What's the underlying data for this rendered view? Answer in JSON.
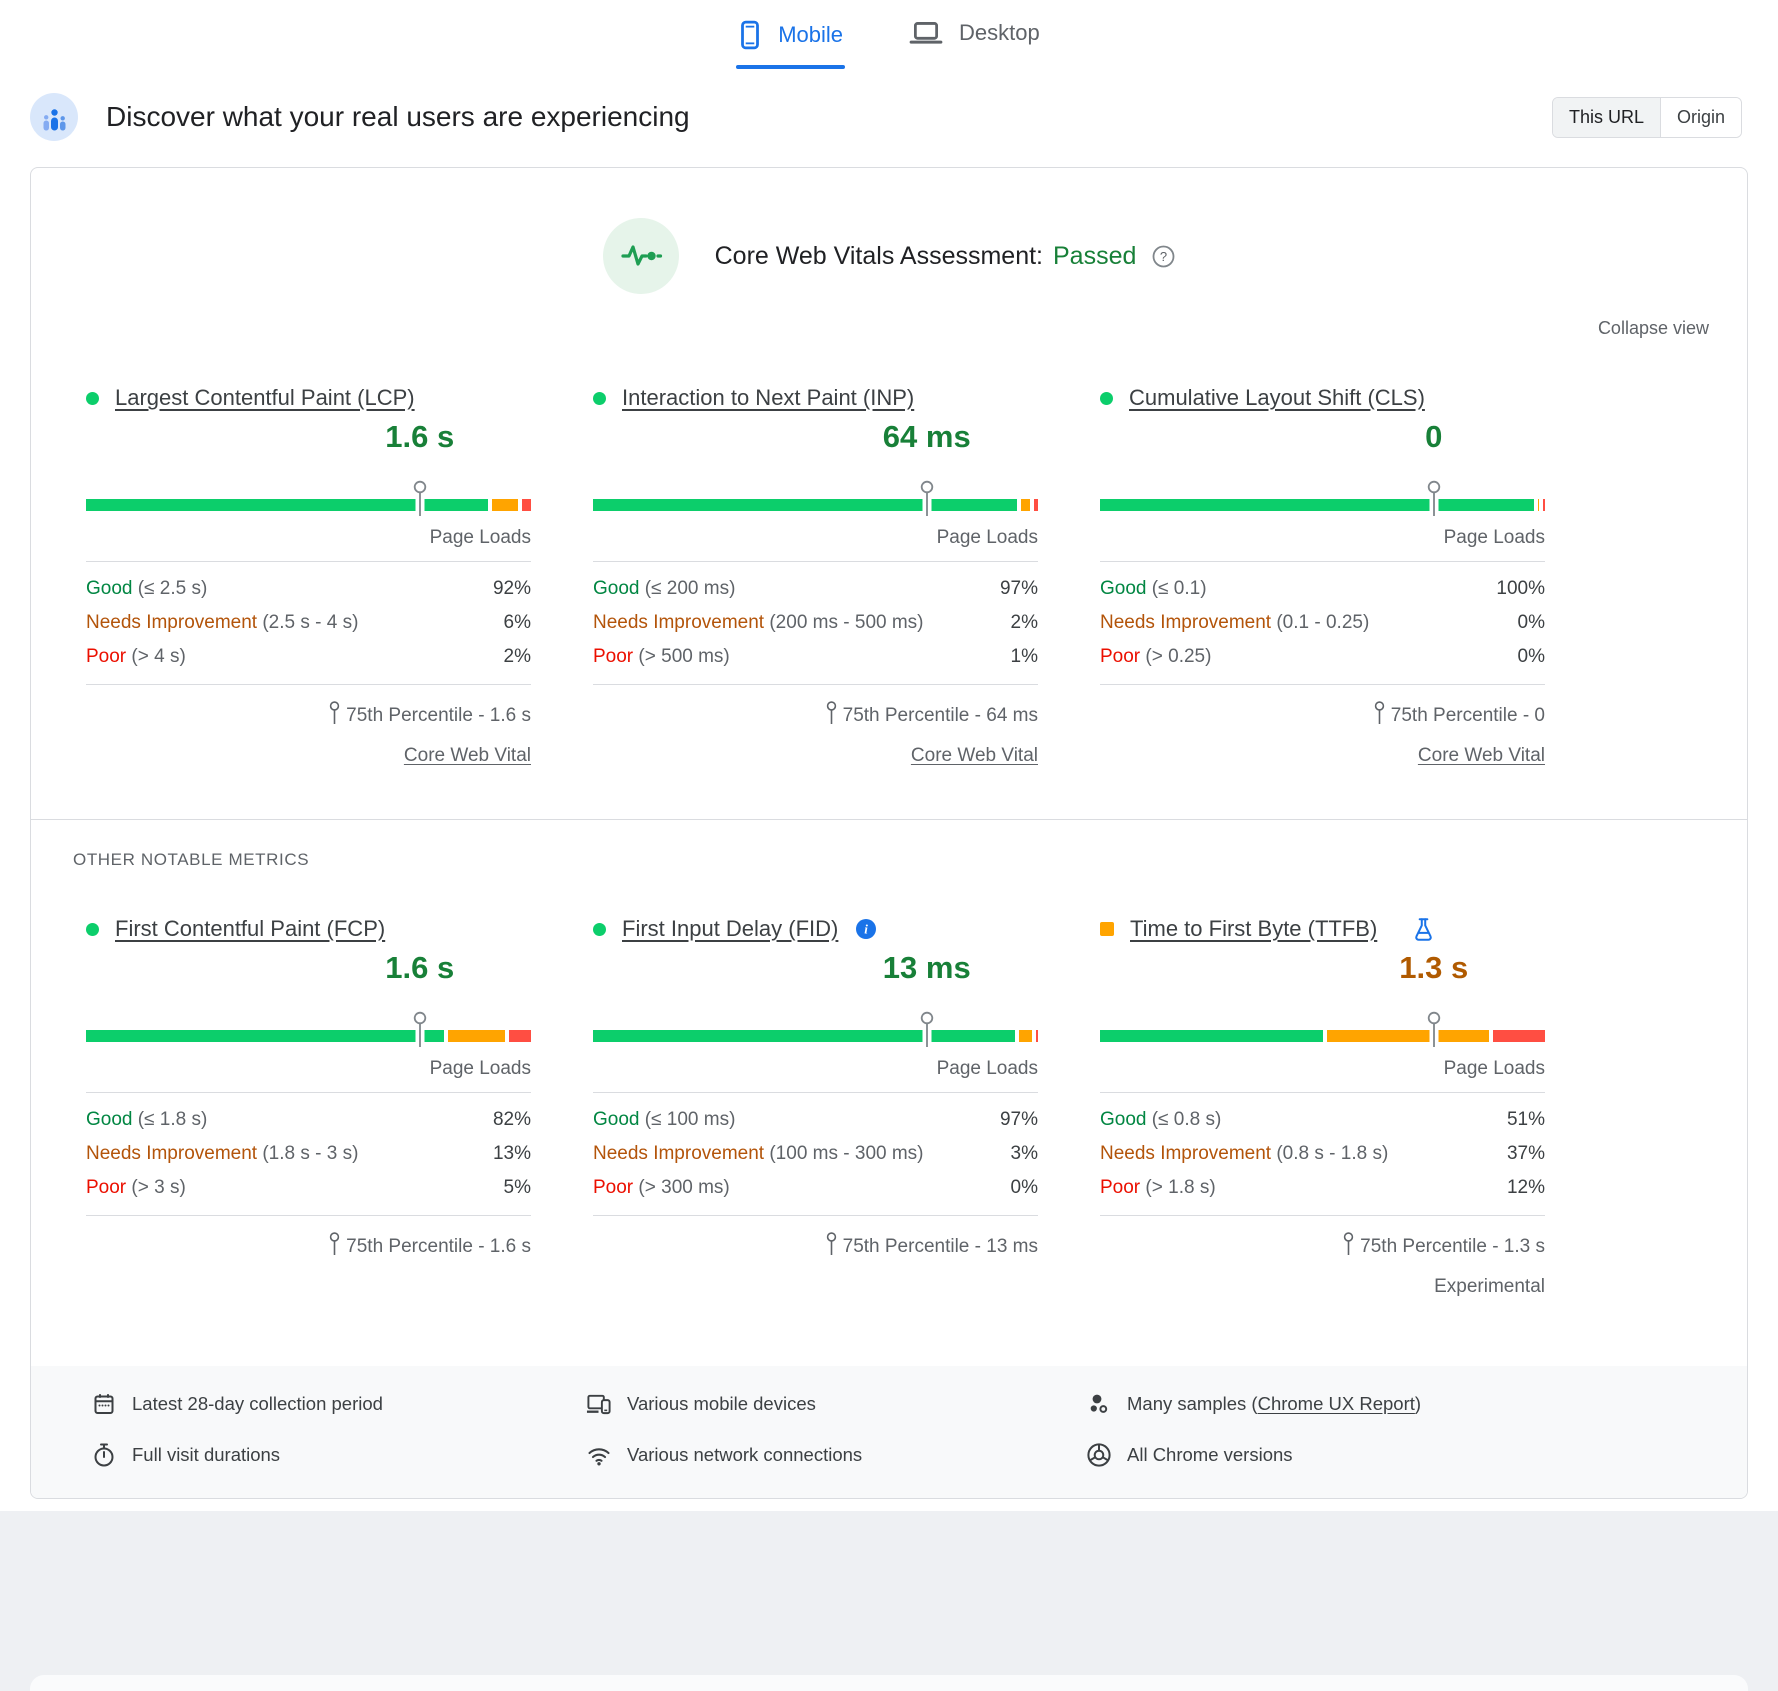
{
  "tabs": {
    "items": [
      {
        "label": "Mobile",
        "icon": "mobile-icon",
        "active": true
      },
      {
        "label": "Desktop",
        "icon": "desktop-icon",
        "active": false
      }
    ]
  },
  "header": {
    "title": "Discover what your real users are experiencing",
    "avatar_icon": "users-avatar-icon",
    "toggle": [
      {
        "label": "This URL",
        "selected": true
      },
      {
        "label": "Origin",
        "selected": false
      }
    ]
  },
  "assessment": {
    "label": "Core Web Vitals Assessment:",
    "status": "Passed",
    "status_color": "#188038",
    "icon": "pulse-icon",
    "help_icon": "help-icon",
    "collapse_label": "Collapse view"
  },
  "sections": {
    "other_label": "OTHER NOTABLE METRICS"
  },
  "icons": {
    "percentile_pin": "pin-icon",
    "percentile_pin_small": "mini-pin-icon"
  },
  "metrics": [
    {
      "group": "core",
      "marker_shape": "circle",
      "marker_color": "#0cce6b",
      "title": "Largest Contentful Paint (LCP)",
      "value": "1.6 s",
      "value_color": "#188038",
      "marker_pos_pct": 75,
      "unit_label": "Page Loads",
      "segments": [
        {
          "color": "#0cce6b",
          "pct": 92
        },
        {
          "color": "#ffa400",
          "pct": 6
        },
        {
          "color": "#ff4e42",
          "pct": 2
        }
      ],
      "rows": [
        {
          "label": "Good",
          "label_color": "#018642",
          "range": "(≤ 2.5 s)",
          "value": "92%"
        },
        {
          "label": "Needs Improvement",
          "label_color": "#b3540a",
          "range": "(2.5 s - 4 s)",
          "value": "6%"
        },
        {
          "label": "Poor",
          "label_color": "#eb0f00",
          "range": "(> 4 s)",
          "value": "2%"
        }
      ],
      "percentile": "75th Percentile - 1.6 s",
      "link": "Core Web Vital"
    },
    {
      "group": "core",
      "marker_shape": "circle",
      "marker_color": "#0cce6b",
      "title": "Interaction to Next Paint (INP)",
      "value": "64 ms",
      "value_color": "#188038",
      "marker_pos_pct": 75,
      "unit_label": "Page Loads",
      "segments": [
        {
          "color": "#0cce6b",
          "pct": 97
        },
        {
          "color": "#ffa400",
          "pct": 2
        },
        {
          "color": "#ff4e42",
          "pct": 1
        }
      ],
      "rows": [
        {
          "label": "Good",
          "label_color": "#018642",
          "range": "(≤ 200 ms)",
          "value": "97%"
        },
        {
          "label": "Needs Improvement",
          "label_color": "#b3540a",
          "range": "(200 ms - 500 ms)",
          "value": "2%"
        },
        {
          "label": "Poor",
          "label_color": "#eb0f00",
          "range": "(> 500 ms)",
          "value": "1%"
        }
      ],
      "percentile": "75th Percentile - 64 ms",
      "link": "Core Web Vital"
    },
    {
      "group": "core",
      "marker_shape": "circle",
      "marker_color": "#0cce6b",
      "title": "Cumulative Layout Shift (CLS)",
      "value": "0",
      "value_color": "#188038",
      "marker_pos_pct": 75,
      "unit_label": "Page Loads",
      "segments": [
        {
          "color": "#0cce6b",
          "pct": 100
        },
        {
          "color": "#ffa400",
          "pct": 0
        },
        {
          "color": "#ff4e42",
          "pct": 0
        }
      ],
      "rows": [
        {
          "label": "Good",
          "label_color": "#018642",
          "range": "(≤ 0.1)",
          "value": "100%"
        },
        {
          "label": "Needs Improvement",
          "label_color": "#b3540a",
          "range": "(0.1 - 0.25)",
          "value": "0%"
        },
        {
          "label": "Poor",
          "label_color": "#eb0f00",
          "range": "(> 0.25)",
          "value": "0%"
        }
      ],
      "percentile": "75th Percentile - 0",
      "link": "Core Web Vital"
    },
    {
      "group": "other",
      "marker_shape": "circle",
      "marker_color": "#0cce6b",
      "title": "First Contentful Paint (FCP)",
      "value": "1.6 s",
      "value_color": "#188038",
      "marker_pos_pct": 75,
      "unit_label": "Page Loads",
      "segments": [
        {
          "color": "#0cce6b",
          "pct": 82
        },
        {
          "color": "#ffa400",
          "pct": 13
        },
        {
          "color": "#ff4e42",
          "pct": 5
        }
      ],
      "rows": [
        {
          "label": "Good",
          "label_color": "#018642",
          "range": "(≤ 1.8 s)",
          "value": "82%"
        },
        {
          "label": "Needs Improvement",
          "label_color": "#b3540a",
          "range": "(1.8 s - 3 s)",
          "value": "13%"
        },
        {
          "label": "Poor",
          "label_color": "#eb0f00",
          "range": "(> 3 s)",
          "value": "5%"
        }
      ],
      "percentile": "75th Percentile - 1.6 s"
    },
    {
      "group": "other",
      "marker_shape": "circle",
      "marker_color": "#0cce6b",
      "title": "First Input Delay (FID)",
      "info_icon": "info-icon",
      "value": "13 ms",
      "value_color": "#188038",
      "marker_pos_pct": 75,
      "unit_label": "Page Loads",
      "segments": [
        {
          "color": "#0cce6b",
          "pct": 97
        },
        {
          "color": "#ffa400",
          "pct": 3
        },
        {
          "color": "#ff4e42",
          "pct": 0
        }
      ],
      "rows": [
        {
          "label": "Good",
          "label_color": "#018642",
          "range": "(≤ 100 ms)",
          "value": "97%"
        },
        {
          "label": "Needs Improvement",
          "label_color": "#b3540a",
          "range": "(100 ms - 300 ms)",
          "value": "3%"
        },
        {
          "label": "Poor",
          "label_color": "#eb0f00",
          "range": "(> 300 ms)",
          "value": "0%"
        }
      ],
      "percentile": "75th Percentile - 13 ms"
    },
    {
      "group": "other",
      "marker_shape": "square",
      "marker_color": "#ffa400",
      "title": "Time to First Byte (TTFB)",
      "flask_icon": "flask-icon",
      "value": "1.3 s",
      "value_color": "#b05a00",
      "marker_pos_pct": 75,
      "unit_label": "Page Loads",
      "segments": [
        {
          "color": "#0cce6b",
          "pct": 51
        },
        {
          "color": "#ffa400",
          "pct": 37
        },
        {
          "color": "#ff4e42",
          "pct": 12
        }
      ],
      "rows": [
        {
          "label": "Good",
          "label_color": "#018642",
          "range": "(≤ 0.8 s)",
          "value": "51%"
        },
        {
          "label": "Needs Improvement",
          "label_color": "#b3540a",
          "range": "(0.8 s - 1.8 s)",
          "value": "37%"
        },
        {
          "label": "Poor",
          "label_color": "#eb0f00",
          "range": "(> 1.8 s)",
          "value": "12%"
        }
      ],
      "percentile": "75th Percentile - 1.3 s",
      "experimental": "Experimental"
    }
  ],
  "footer": {
    "items": [
      {
        "icon": "calendar-icon",
        "text": "Latest 28-day collection period"
      },
      {
        "icon": "devices-icon",
        "text": "Various mobile devices"
      },
      {
        "icon": "samples-icon",
        "text_prefix": "Many samples (",
        "link": "Chrome UX Report",
        "text_suffix": ")"
      },
      {
        "icon": "stopwatch-icon",
        "text": "Full visit durations"
      },
      {
        "icon": "network-icon",
        "text": "Various network connections"
      },
      {
        "icon": "chrome-icon",
        "text": "All Chrome versions"
      }
    ]
  },
  "chart_data": [
    {
      "type": "bar",
      "metric": "LCP",
      "title": "Largest Contentful Paint (LCP)",
      "p75_value": "1.6 s",
      "categories": [
        "Good (≤ 2.5 s)",
        "Needs Improvement (2.5 s - 4 s)",
        "Poor (> 4 s)"
      ],
      "values": [
        92,
        6,
        2
      ],
      "ylabel": "Page Loads %"
    },
    {
      "type": "bar",
      "metric": "INP",
      "title": "Interaction to Next Paint (INP)",
      "p75_value": "64 ms",
      "categories": [
        "Good (≤ 200 ms)",
        "Needs Improvement (200 ms - 500 ms)",
        "Poor (> 500 ms)"
      ],
      "values": [
        97,
        2,
        1
      ],
      "ylabel": "Page Loads %"
    },
    {
      "type": "bar",
      "metric": "CLS",
      "title": "Cumulative Layout Shift (CLS)",
      "p75_value": "0",
      "categories": [
        "Good (≤ 0.1)",
        "Needs Improvement (0.1 - 0.25)",
        "Poor (> 0.25)"
      ],
      "values": [
        100,
        0,
        0
      ],
      "ylabel": "Page Loads %"
    },
    {
      "type": "bar",
      "metric": "FCP",
      "title": "First Contentful Paint (FCP)",
      "p75_value": "1.6 s",
      "categories": [
        "Good (≤ 1.8 s)",
        "Needs Improvement (1.8 s - 3 s)",
        "Poor (> 3 s)"
      ],
      "values": [
        82,
        13,
        5
      ],
      "ylabel": "Page Loads %"
    },
    {
      "type": "bar",
      "metric": "FID",
      "title": "First Input Delay (FID)",
      "p75_value": "13 ms",
      "categories": [
        "Good (≤ 100 ms)",
        "Needs Improvement (100 ms - 300 ms)",
        "Poor (> 300 ms)"
      ],
      "values": [
        97,
        3,
        0
      ],
      "ylabel": "Page Loads %"
    },
    {
      "type": "bar",
      "metric": "TTFB",
      "title": "Time to First Byte (TTFB)",
      "p75_value": "1.3 s",
      "categories": [
        "Good (≤ 0.8 s)",
        "Needs Improvement (0.8 s - 1.8 s)",
        "Poor (> 1.8 s)"
      ],
      "values": [
        51,
        37,
        12
      ],
      "ylabel": "Page Loads %"
    }
  ]
}
